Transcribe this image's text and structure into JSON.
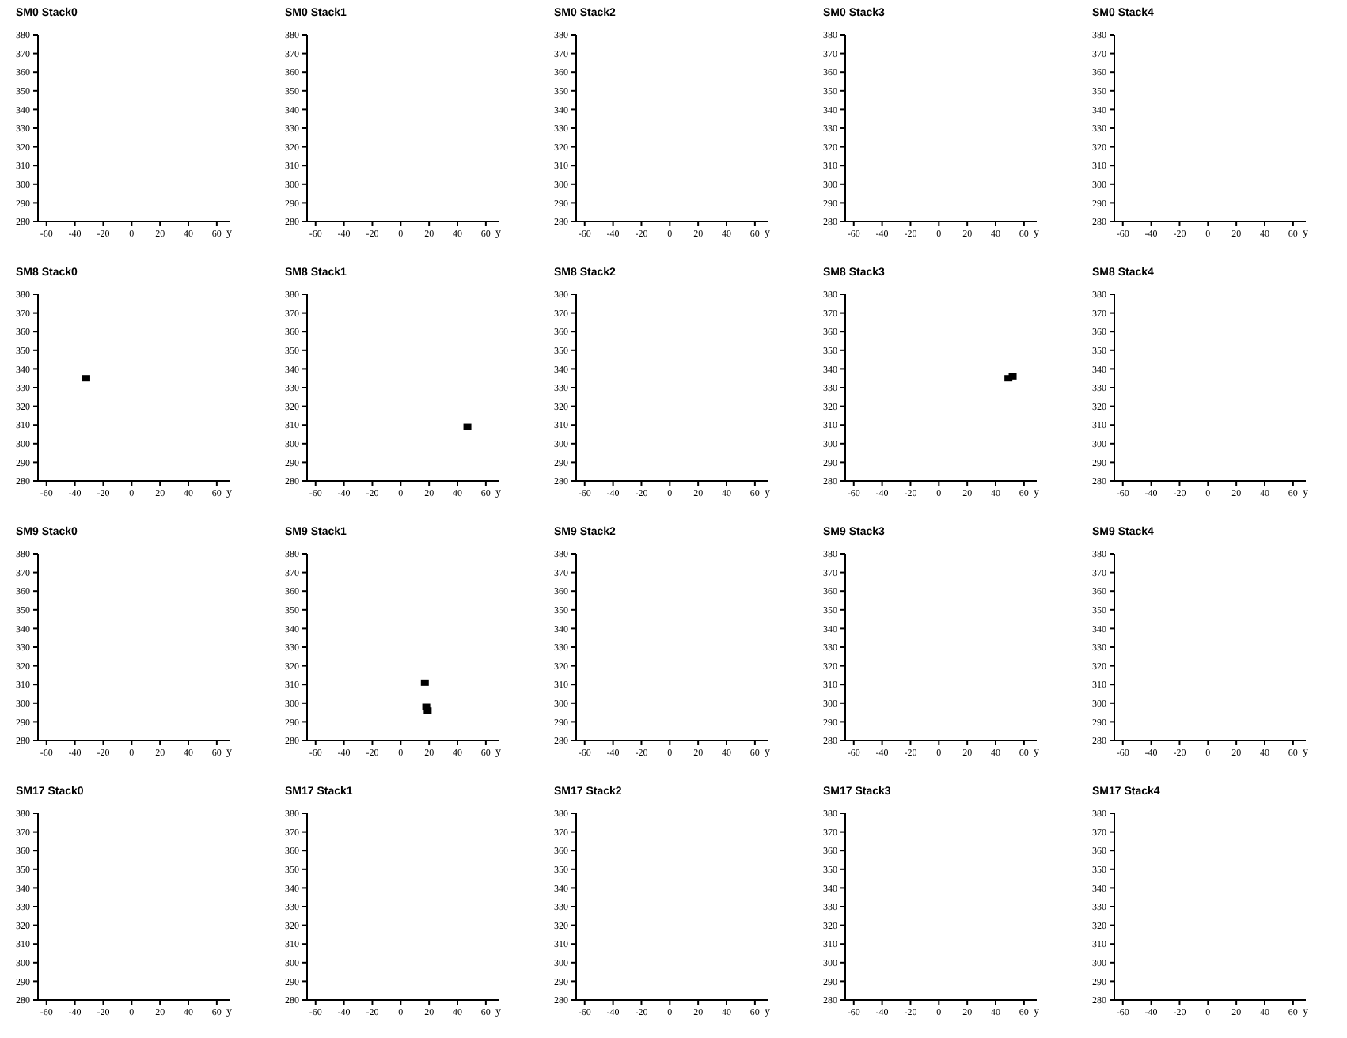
{
  "chart_data": [
    {
      "type": "scatter",
      "title": "SM0 Stack0",
      "xlabel": "y",
      "color": "#000000",
      "marker": "square",
      "xlim": [
        -66,
        69
      ],
      "xticks": [
        -60,
        -40,
        -20,
        0,
        20,
        40,
        60
      ],
      "ylim": [
        280,
        380
      ],
      "yticks": [
        280,
        290,
        300,
        310,
        320,
        330,
        340,
        350,
        360,
        370,
        380
      ]
    },
    {
      "type": "scatter",
      "title": "SM0 Stack1",
      "xlabel": "y",
      "color": "#000000",
      "marker": "square",
      "xlim": [
        -66,
        69
      ],
      "xticks": [
        -60,
        -40,
        -20,
        0,
        20,
        40,
        60
      ],
      "ylim": [
        280,
        380
      ],
      "yticks": [
        280,
        290,
        300,
        310,
        320,
        330,
        340,
        350,
        360,
        370,
        380
      ]
    },
    {
      "type": "scatter",
      "title": "SM0 Stack2",
      "xlabel": "y",
      "color": "#000000",
      "marker": "square",
      "xlim": [
        -66,
        69
      ],
      "xticks": [
        -60,
        -40,
        -20,
        0,
        20,
        40,
        60
      ],
      "ylim": [
        280,
        380
      ],
      "yticks": [
        280,
        290,
        300,
        310,
        320,
        330,
        340,
        350,
        360,
        370,
        380
      ]
    },
    {
      "type": "scatter",
      "title": "SM0 Stack3",
      "xlabel": "y",
      "color": "#000000",
      "marker": "square",
      "xlim": [
        -66,
        69
      ],
      "xticks": [
        -60,
        -40,
        -20,
        0,
        20,
        40,
        60
      ],
      "ylim": [
        280,
        380
      ],
      "yticks": [
        280,
        290,
        300,
        310,
        320,
        330,
        340,
        350,
        360,
        370,
        380
      ]
    },
    {
      "type": "scatter",
      "title": "SM0 Stack4",
      "xlabel": "y",
      "color": "#000000",
      "marker": "square",
      "xlim": [
        -66,
        69
      ],
      "xticks": [
        -60,
        -40,
        -20,
        0,
        20,
        40,
        60
      ],
      "ylim": [
        280,
        380
      ],
      "yticks": [
        280,
        290,
        300,
        310,
        320,
        330,
        340,
        350,
        360,
        370,
        380
      ]
    },
    {
      "type": "scatter",
      "title": "SM8 Stack0",
      "xlabel": "y",
      "x": [
        -32
      ],
      "values": [
        335
      ],
      "color": "#000000",
      "marker": "square",
      "xlim": [
        -66,
        69
      ],
      "xticks": [
        -60,
        -40,
        -20,
        0,
        20,
        40,
        60
      ],
      "ylim": [
        280,
        380
      ],
      "yticks": [
        280,
        290,
        300,
        310,
        320,
        330,
        340,
        350,
        360,
        370,
        380
      ]
    },
    {
      "type": "scatter",
      "title": "SM8 Stack1",
      "xlabel": "y",
      "x": [
        47
      ],
      "values": [
        309
      ],
      "color": "#000000",
      "marker": "square",
      "xlim": [
        -66,
        69
      ],
      "xticks": [
        -60,
        -40,
        -20,
        0,
        20,
        40,
        60
      ],
      "ylim": [
        280,
        380
      ],
      "yticks": [
        280,
        290,
        300,
        310,
        320,
        330,
        340,
        350,
        360,
        370,
        380
      ]
    },
    {
      "type": "scatter",
      "title": "SM8 Stack2",
      "xlabel": "y",
      "color": "#000000",
      "marker": "square",
      "xlim": [
        -66,
        69
      ],
      "xticks": [
        -60,
        -40,
        -20,
        0,
        20,
        40,
        60
      ],
      "ylim": [
        280,
        380
      ],
      "yticks": [
        280,
        290,
        300,
        310,
        320,
        330,
        340,
        350,
        360,
        370,
        380
      ]
    },
    {
      "type": "scatter",
      "title": "SM8 Stack3",
      "xlabel": "y",
      "x": [
        49,
        52
      ],
      "values": [
        335,
        336
      ],
      "color": "#000000",
      "marker": "square",
      "xlim": [
        -66,
        69
      ],
      "xticks": [
        -60,
        -40,
        -20,
        0,
        20,
        40,
        60
      ],
      "ylim": [
        280,
        380
      ],
      "yticks": [
        280,
        290,
        300,
        310,
        320,
        330,
        340,
        350,
        360,
        370,
        380
      ]
    },
    {
      "type": "scatter",
      "title": "SM8 Stack4",
      "xlabel": "y",
      "color": "#000000",
      "marker": "square",
      "xlim": [
        -66,
        69
      ],
      "xticks": [
        -60,
        -40,
        -20,
        0,
        20,
        40,
        60
      ],
      "ylim": [
        280,
        380
      ],
      "yticks": [
        280,
        290,
        300,
        310,
        320,
        330,
        340,
        350,
        360,
        370,
        380
      ]
    },
    {
      "type": "scatter",
      "title": "SM9 Stack0",
      "xlabel": "y",
      "color": "#000000",
      "marker": "square",
      "xlim": [
        -66,
        69
      ],
      "xticks": [
        -60,
        -40,
        -20,
        0,
        20,
        40,
        60
      ],
      "ylim": [
        280,
        380
      ],
      "yticks": [
        280,
        290,
        300,
        310,
        320,
        330,
        340,
        350,
        360,
        370,
        380
      ]
    },
    {
      "type": "scatter",
      "title": "SM9 Stack1",
      "xlabel": "y",
      "x": [
        17,
        18,
        19
      ],
      "values": [
        311,
        298,
        296
      ],
      "color": "#000000",
      "marker": "square",
      "xlim": [
        -66,
        69
      ],
      "xticks": [
        -60,
        -40,
        -20,
        0,
        20,
        40,
        60
      ],
      "ylim": [
        280,
        380
      ],
      "yticks": [
        280,
        290,
        300,
        310,
        320,
        330,
        340,
        350,
        360,
        370,
        380
      ]
    },
    {
      "type": "scatter",
      "title": "SM9 Stack2",
      "xlabel": "y",
      "color": "#000000",
      "marker": "square",
      "xlim": [
        -66,
        69
      ],
      "xticks": [
        -60,
        -40,
        -20,
        0,
        20,
        40,
        60
      ],
      "ylim": [
        280,
        380
      ],
      "yticks": [
        280,
        290,
        300,
        310,
        320,
        330,
        340,
        350,
        360,
        370,
        380
      ]
    },
    {
      "type": "scatter",
      "title": "SM9 Stack3",
      "xlabel": "y",
      "color": "#000000",
      "marker": "square",
      "xlim": [
        -66,
        69
      ],
      "xticks": [
        -60,
        -40,
        -20,
        0,
        20,
        40,
        60
      ],
      "ylim": [
        280,
        380
      ],
      "yticks": [
        280,
        290,
        300,
        310,
        320,
        330,
        340,
        350,
        360,
        370,
        380
      ]
    },
    {
      "type": "scatter",
      "title": "SM9 Stack4",
      "xlabel": "y",
      "color": "#000000",
      "marker": "square",
      "xlim": [
        -66,
        69
      ],
      "xticks": [
        -60,
        -40,
        -20,
        0,
        20,
        40,
        60
      ],
      "ylim": [
        280,
        380
      ],
      "yticks": [
        280,
        290,
        300,
        310,
        320,
        330,
        340,
        350,
        360,
        370,
        380
      ]
    },
    {
      "type": "scatter",
      "title": "SM17 Stack0",
      "xlabel": "y",
      "color": "#000000",
      "marker": "square",
      "xlim": [
        -66,
        69
      ],
      "xticks": [
        -60,
        -40,
        -20,
        0,
        20,
        40,
        60
      ],
      "ylim": [
        280,
        380
      ],
      "yticks": [
        280,
        290,
        300,
        310,
        320,
        330,
        340,
        350,
        360,
        370,
        380
      ]
    },
    {
      "type": "scatter",
      "title": "SM17 Stack1",
      "xlabel": "y",
      "color": "#000000",
      "marker": "square",
      "xlim": [
        -66,
        69
      ],
      "xticks": [
        -60,
        -40,
        -20,
        0,
        20,
        40,
        60
      ],
      "ylim": [
        280,
        380
      ],
      "yticks": [
        280,
        290,
        300,
        310,
        320,
        330,
        340,
        350,
        360,
        370,
        380
      ]
    },
    {
      "type": "scatter",
      "title": "SM17 Stack2",
      "xlabel": "y",
      "color": "#000000",
      "marker": "square",
      "xlim": [
        -66,
        69
      ],
      "xticks": [
        -60,
        -40,
        -20,
        0,
        20,
        40,
        60
      ],
      "ylim": [
        280,
        380
      ],
      "yticks": [
        280,
        290,
        300,
        310,
        320,
        330,
        340,
        350,
        360,
        370,
        380
      ]
    },
    {
      "type": "scatter",
      "title": "SM17 Stack3",
      "xlabel": "y",
      "color": "#000000",
      "marker": "square",
      "xlim": [
        -66,
        69
      ],
      "xticks": [
        -60,
        -40,
        -20,
        0,
        20,
        40,
        60
      ],
      "ylim": [
        280,
        380
      ],
      "yticks": [
        280,
        290,
        300,
        310,
        320,
        330,
        340,
        350,
        360,
        370,
        380
      ]
    },
    {
      "type": "scatter",
      "title": "SM17 Stack4",
      "xlabel": "y",
      "color": "#000000",
      "marker": "square",
      "xlim": [
        -66,
        69
      ],
      "xticks": [
        -60,
        -40,
        -20,
        0,
        20,
        40,
        60
      ],
      "ylim": [
        280,
        380
      ],
      "yticks": [
        280,
        290,
        300,
        310,
        320,
        330,
        340,
        350,
        360,
        370,
        380
      ]
    }
  ]
}
